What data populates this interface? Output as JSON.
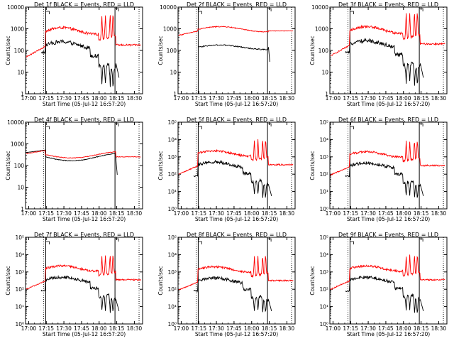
{
  "chart_data": {
    "type": "line",
    "xlabel": "Start Time (05-Jul-12 16:57:20)",
    "ylabel": "Counts/sec",
    "x_tick_labels": [
      "17:00",
      "17:15",
      "17:30",
      "17:45",
      "18:00",
      "18:15",
      "18:30"
    ],
    "x_range": [
      "16:57:20",
      "18:37:00"
    ],
    "y_scale": "log",
    "series_colors": {
      "events": "#000000",
      "lld": "#ff0000"
    },
    "panels": [
      {
        "title": "Det 1f BLACK = Events, RED = LLD",
        "ylim": [
          1,
          10000
        ],
        "y_tick_labels": [
          "1",
          "10",
          "100",
          "1000",
          "10000"
        ],
        "profile": "flare",
        "lld_base": 1.7,
        "ev_base": -0.55
      },
      {
        "title": "Det 2f BLACK = Events, RED = LLD",
        "ylim": [
          1,
          10000
        ],
        "y_tick_labels": [
          "1",
          "10",
          "100",
          "1000",
          "10000"
        ],
        "profile": "smooth_high",
        "lld_base": 2.7,
        "ev_base": 2.15
      },
      {
        "title": "Det 3f BLACK = Events, RED = LLD",
        "ylim": [
          1,
          10000
        ],
        "y_tick_labels": [
          "1",
          "10",
          "100",
          "1000",
          "10000"
        ],
        "profile": "flare",
        "lld_base": 1.75,
        "ev_base": -0.55
      },
      {
        "title": "Det 4f BLACK = Events, RED = LLD",
        "ylim": [
          1,
          10000
        ],
        "y_tick_labels": [
          "1",
          "10",
          "100",
          "1000",
          "10000"
        ],
        "profile": "smooth_low",
        "lld_base": 2.55,
        "ev_base": 2.45
      },
      {
        "title": "Det 5f BLACK = Events, RED = LLD",
        "ylim": [
          1,
          100000
        ],
        "y_tick_labels": [
          "10⁰",
          "10¹",
          "10²",
          "10³",
          "10⁴",
          "10⁵"
        ],
        "profile": "flare",
        "lld_base": 2.0,
        "ev_base": 0.3
      },
      {
        "title": "Det 6f BLACK = Events, RED = LLD",
        "ylim": [
          1,
          100000
        ],
        "y_tick_labels": [
          "10⁰",
          "10¹",
          "10²",
          "10³",
          "10⁴",
          "10⁵"
        ],
        "profile": "flare",
        "lld_base": 1.95,
        "ev_base": 0.35
      },
      {
        "title": "Det 7f BLACK = Events, RED = LLD",
        "ylim": [
          1,
          100000
        ],
        "y_tick_labels": [
          "10⁰",
          "10¹",
          "10²",
          "10³",
          "10⁴",
          "10⁵"
        ],
        "profile": "flare",
        "lld_base": 2.0,
        "ev_base": 0.3
      },
      {
        "title": "Det 8f BLACK = Events, RED = LLD",
        "ylim": [
          1,
          100000
        ],
        "y_tick_labels": [
          "10⁰",
          "10¹",
          "10²",
          "10³",
          "10⁴",
          "10⁵"
        ],
        "profile": "flare",
        "lld_base": 1.95,
        "ev_base": 0.3
      },
      {
        "title": "Det 9f BLACK = Events, RED = LLD",
        "ylim": [
          1,
          100000
        ],
        "y_tick_labels": [
          "10⁰",
          "10¹",
          "10²",
          "10³",
          "10⁴",
          "10⁵"
        ],
        "profile": "flare",
        "lld_base": 2.0,
        "ev_base": 0.3
      }
    ]
  }
}
